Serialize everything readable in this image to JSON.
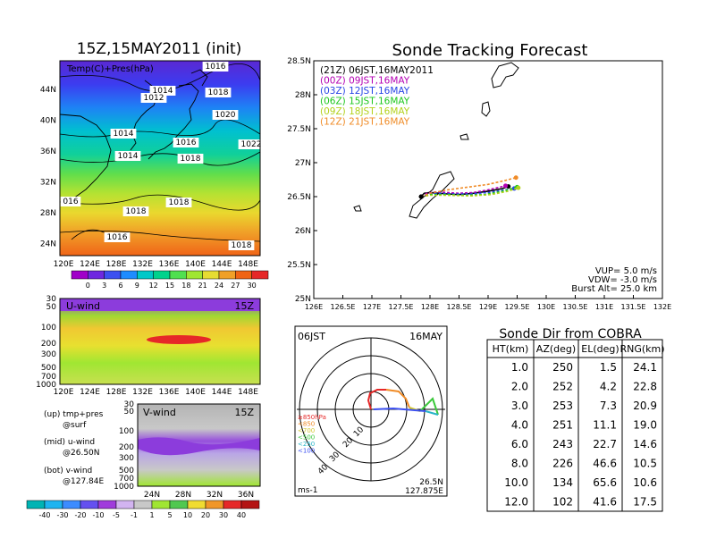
{
  "left": {
    "title": "15Z,15MAY2011 (init)",
    "map": {
      "label": "Temp(C)+Pres(hPa)",
      "lat_labels": [
        "44N",
        "40N",
        "36N",
        "32N",
        "28N",
        "24N"
      ],
      "lon_labels": [
        "120E",
        "124E",
        "128E",
        "132E",
        "136E",
        "140E",
        "144E",
        "148E"
      ],
      "isobar_labels": [
        "1016",
        "1014",
        "1012",
        "1018",
        "1020",
        "1014",
        "1016",
        "1022",
        "1014",
        "1018",
        "016",
        "1018",
        "1018",
        "1016",
        "1018"
      ]
    },
    "colorbar_temp": {
      "ticks": [
        "0",
        "3",
        "6",
        "9",
        "12",
        "15",
        "18",
        "21",
        "24",
        "27",
        "30"
      ],
      "colors": [
        "#a000c8",
        "#6e28e0",
        "#3c50f0",
        "#1e8cff",
        "#00c8c8",
        "#00d28c",
        "#50e050",
        "#a0e632",
        "#e6dc32",
        "#f0a028",
        "#f06414",
        "#e62828"
      ]
    },
    "uwind": {
      "label": "U-wind",
      "time": "15Z",
      "p_labels": [
        "30",
        "50",
        "100",
        "200",
        "300",
        "500",
        "700",
        "1000"
      ],
      "lon_labels": [
        "120E",
        "124E",
        "128E",
        "132E",
        "136E",
        "140E",
        "144E",
        "148E"
      ]
    },
    "vwind": {
      "label": "V-wind",
      "time": "15Z",
      "p_labels": [
        "30",
        "50",
        "100",
        "200",
        "300",
        "500",
        "700",
        "1000"
      ],
      "lat_labels": [
        "24N",
        "28N",
        "32N",
        "36N"
      ]
    },
    "legend_notes": [
      "(up) tmp+pres",
      "@surf",
      "(mid) u-wind",
      "@26.50N",
      "(bot) v-wind",
      "@127.84E"
    ],
    "colorbar_wind": {
      "ticks": [
        "-40",
        "-30",
        "-20",
        "-10",
        "-5",
        "-1",
        "1",
        "5",
        "10",
        "20",
        "30",
        "40"
      ],
      "colors": [
        "#00b4b4",
        "#1eb4f0",
        "#3c8cff",
        "#6450f0",
        "#a03cdc",
        "#d2b4f0",
        "#c8c8c8",
        "#a0e632",
        "#50c850",
        "#f0dc32",
        "#f09628",
        "#e62828",
        "#b41414"
      ]
    }
  },
  "track": {
    "title": "Sonde Tracking Forecast",
    "lat_labels": [
      "28.5N",
      "28N",
      "27.5N",
      "27N",
      "26.5N",
      "26N",
      "25.5N",
      "25N"
    ],
    "lon_labels": [
      "126E",
      "126.5E",
      "127E",
      "127.5E",
      "128E",
      "128.5E",
      "129E",
      "129.5E",
      "130E",
      "130.5E",
      "131E",
      "131.5E",
      "132E"
    ],
    "legend": [
      {
        "text": "(21Z)  06JST,16MAY2011",
        "color": "#000000"
      },
      {
        "text": "(00Z)  09JST,16MAY",
        "color": "#b400b4"
      },
      {
        "text": "(03Z)  12JST,16MAY",
        "color": "#2846e6"
      },
      {
        "text": "(06Z)  15JST,16MAY",
        "color": "#1ec81e"
      },
      {
        "text": "(09Z)  18JST,16MAY",
        "color": "#b4d21e"
      },
      {
        "text": "(12Z)  21JST,16MAY",
        "color": "#f08c28"
      }
    ],
    "params": [
      "VUP= 5.0 m/s",
      "VDW= -3.0 m/s",
      "Burst Alt= 25.0 km"
    ]
  },
  "chart_data": {
    "type": "line",
    "title": "Sonde Tracking Forecast",
    "xlim": [
      126,
      132
    ],
    "ylim": [
      25,
      28.5
    ],
    "series": [
      {
        "name": "(21Z) 06JST,16MAY2011",
        "color": "#000000",
        "lon": [
          127.85,
          127.9,
          128.0,
          128.15,
          128.3,
          128.5,
          128.75,
          129.0,
          129.25,
          129.35
        ],
        "lat": [
          26.5,
          26.55,
          26.56,
          26.55,
          26.54,
          26.53,
          26.55,
          26.58,
          26.62,
          26.65
        ]
      },
      {
        "name": "(00Z) 09JST,16MAY",
        "color": "#b400b4",
        "lon": [
          127.85,
          127.95,
          128.1,
          128.3,
          128.5,
          128.75,
          129.0,
          129.2,
          129.3
        ],
        "lat": [
          26.5,
          26.55,
          26.57,
          26.56,
          26.55,
          26.56,
          26.6,
          26.64,
          26.66
        ]
      },
      {
        "name": "(03Z) 12JST,16MAY",
        "color": "#2846e6",
        "lon": [
          127.85,
          127.95,
          128.15,
          128.4,
          128.7,
          129.0,
          129.3,
          129.45
        ],
        "lat": [
          26.5,
          26.53,
          26.55,
          26.54,
          26.54,
          26.56,
          26.6,
          26.62
        ]
      },
      {
        "name": "(06Z) 15JST,16MAY",
        "color": "#1ec81e",
        "lon": [
          127.85,
          128.0,
          128.3,
          128.6,
          128.95,
          129.25,
          129.5
        ],
        "lat": [
          26.5,
          26.53,
          26.53,
          26.52,
          26.53,
          26.58,
          26.64
        ]
      },
      {
        "name": "(09Z) 18JST,16MAY",
        "color": "#b4d21e",
        "lon": [
          127.85,
          128.0,
          128.3,
          128.7,
          129.05,
          129.35,
          129.52
        ],
        "lat": [
          26.5,
          26.52,
          26.52,
          26.51,
          26.53,
          26.58,
          26.63
        ]
      },
      {
        "name": "(12Z) 21JST,16MAY",
        "color": "#f08c28",
        "lon": [
          127.85,
          128.0,
          128.3,
          128.65,
          129.0,
          129.3,
          129.48
        ],
        "lat": [
          26.5,
          26.55,
          26.6,
          26.64,
          26.68,
          26.74,
          26.78
        ]
      }
    ]
  },
  "polar": {
    "time_label": "06JST",
    "date_label": "16MAY",
    "legend": [
      {
        "text": "≥850hPa",
        "color": "#e62828"
      },
      {
        "text": "<850",
        "color": "#f08c28"
      },
      {
        "text": "<700",
        "color": "#d2c832"
      },
      {
        "text": "<500",
        "color": "#3cc83c"
      },
      {
        "text": "<250",
        "color": "#28b4c8"
      },
      {
        "text": "<100",
        "color": "#3c50f0"
      }
    ],
    "ring_labels": [
      "10",
      "20",
      "30",
      "40"
    ],
    "unit": "ms-1",
    "lat": "26.5N",
    "lon": "127.875E"
  },
  "table": {
    "title": "Sonde Dir from COBRA",
    "headers": [
      "HT(km)",
      "AZ(deg)",
      "EL(deg)",
      "RNG(km)"
    ],
    "rows": [
      [
        "1.0",
        "250",
        "1.5",
        "24.1"
      ],
      [
        "2.0",
        "252",
        "4.2",
        "22.8"
      ],
      [
        "3.0",
        "253",
        "7.3",
        "20.9"
      ],
      [
        "4.0",
        "251",
        "11.1",
        "19.0"
      ],
      [
        "6.0",
        "243",
        "22.7",
        "14.6"
      ],
      [
        "8.0",
        "226",
        "46.6",
        "10.5"
      ],
      [
        "10.0",
        "134",
        "65.6",
        "10.6"
      ],
      [
        "12.0",
        "102",
        "41.6",
        "17.5"
      ]
    ]
  }
}
